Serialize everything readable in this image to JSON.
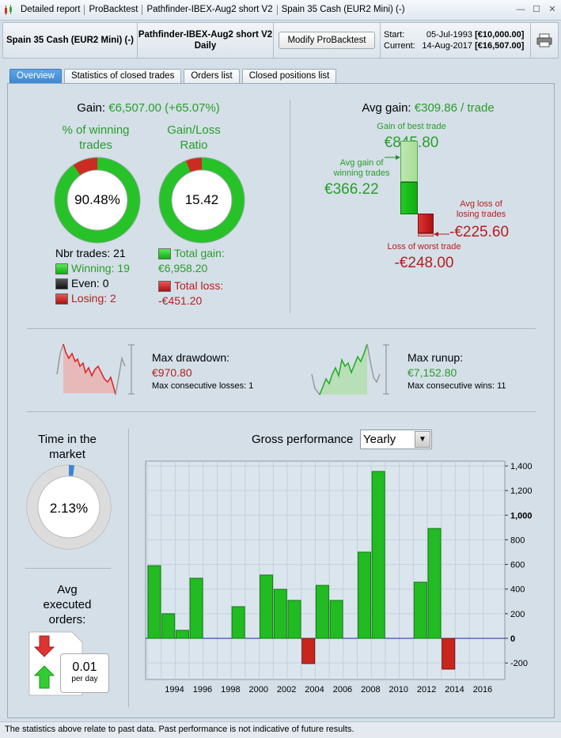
{
  "titlebar": {
    "crumbs": [
      "Detailed report",
      "ProBacktest",
      "Pathfinder-IBEX-Aug2 short V2",
      "Spain 35 Cash (EUR2 Mini) (-)"
    ]
  },
  "infobar": {
    "instrument": "Spain 35 Cash (EUR2 Mini) (-)",
    "strategy": "Pathfinder-IBEX-Aug2 short V2",
    "timeframe": "Daily",
    "modify_button": "Modify ProBacktest",
    "start_label": "Start:",
    "start_date": "05-Jul-1993",
    "start_value": "[€10,000.00]",
    "current_label": "Current:",
    "current_date": "14-Aug-2017",
    "current_value": "[€16,507.00]"
  },
  "tabs": [
    {
      "label": "Overview",
      "active": true
    },
    {
      "label": "Statistics of closed trades",
      "active": false
    },
    {
      "label": "Orders list",
      "active": false
    },
    {
      "label": "Closed positions list",
      "active": false
    }
  ],
  "gain": {
    "label": "Gain:",
    "value": "€6,507.00 (+65.07%)"
  },
  "winning_pct": {
    "title_line1": "% of winning",
    "title_line2": "trades",
    "value": "90.48%",
    "fraction": 0.9048
  },
  "gain_loss_ratio": {
    "title_line1": "Gain/Loss",
    "title_line2": "Ratio",
    "value": "15.42",
    "fraction": 0.939
  },
  "trades": {
    "nbr_label": "Nbr trades: 21",
    "winning": "Winning: 19",
    "even": "Even: 0",
    "losing": "Losing: 2",
    "total_gain_label": "Total gain:",
    "total_gain_value": "€6,958.20",
    "total_loss_label": "Total loss:",
    "total_loss_value": "-€451.20"
  },
  "avg_gain": {
    "label": "Avg gain:",
    "value": "€309.86 / trade",
    "best_label": "Gain of best trade",
    "best_value": "€845.80",
    "avg_win_label_1": "Avg gain of",
    "avg_win_label_2": "winning trades",
    "avg_win_value": "€366.22",
    "avg_loss_label_1": "Avg loss of",
    "avg_loss_label_2": "losing trades",
    "avg_loss_value": "-€225.60",
    "worst_label": "Loss of worst trade",
    "worst_value": "-€248.00"
  },
  "drawdown": {
    "label": "Max drawdown:",
    "value": "€970.80",
    "sub": "Max consecutive losses: 1"
  },
  "runup": {
    "label": "Max runup:",
    "value": "€7,152.80",
    "sub": "Max consecutive wins: 11"
  },
  "time_in_market": {
    "title_line1": "Time in the",
    "title_line2": "market",
    "value": "2.13%",
    "fraction": 0.0213
  },
  "avg_orders": {
    "title_line1": "Avg",
    "title_line2": "executed",
    "title_line3": "orders:",
    "value": "0.01",
    "unit": "per day"
  },
  "performance": {
    "label": "Gross performance",
    "period": "Yearly"
  },
  "chart_data": {
    "type": "bar",
    "title": "Gross performance",
    "x": [
      1993,
      1994,
      1995,
      1996,
      1997,
      1998,
      1999,
      2000,
      2001,
      2002,
      2003,
      2004,
      2005,
      2006,
      2007,
      2008,
      2009,
      2010,
      2011,
      2012,
      2013,
      2014,
      2015,
      2016
    ],
    "values": [
      590,
      200,
      65,
      488,
      0,
      0,
      257,
      0,
      514,
      398,
      308,
      -205,
      430,
      308,
      0,
      700,
      1355,
      0,
      0,
      456,
      892,
      -250,
      0,
      0
    ],
    "xticks": [
      "1994",
      "1996",
      "1998",
      "2000",
      "2002",
      "2004",
      "2006",
      "2008",
      "2010",
      "2012",
      "2014",
      "2016"
    ],
    "yticks": [
      "1,400",
      "1,200",
      "1,000",
      "800",
      "600",
      "400",
      "200",
      "0",
      "-200"
    ],
    "ylim": [
      -350,
      1500
    ],
    "grid": true,
    "colors": {
      "positive": "#22bb22",
      "negative": "#c8251c",
      "zero_line": "#2222aa"
    }
  },
  "footer": {
    "text": "The statistics above relate to past data. Past performance is not indicative of future results."
  }
}
